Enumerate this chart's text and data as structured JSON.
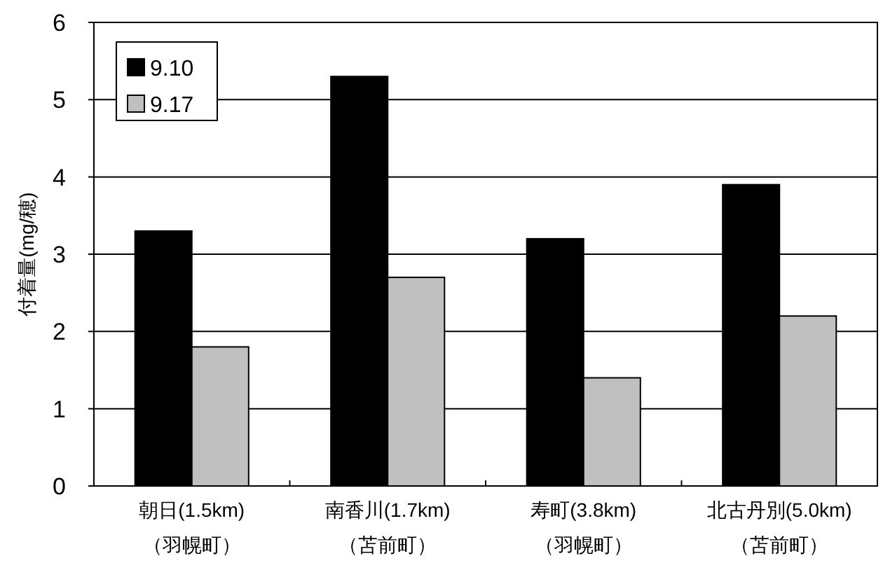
{
  "chart_data": {
    "type": "bar",
    "ylabel": "付着量(mg/穂)",
    "categories": [
      "朝日(1.5km)\n（羽幌町）",
      "南香川(1.7km)\n（苫前町）",
      "寿町(3.8km)\n（羽幌町）",
      "北古丹別(5.0km)\n（苫前町）"
    ],
    "series": [
      {
        "name": "9.10",
        "color": "#000000",
        "values": [
          3.3,
          5.3,
          3.2,
          3.9
        ]
      },
      {
        "name": "9.17",
        "color": "#c0c0c0",
        "values": [
          1.8,
          2.7,
          1.4,
          2.2
        ]
      }
    ],
    "ylim": [
      0,
      6
    ],
    "yticks": [
      0,
      1,
      2,
      3,
      4,
      5,
      6
    ],
    "grid": "y",
    "legend": "top left"
  }
}
